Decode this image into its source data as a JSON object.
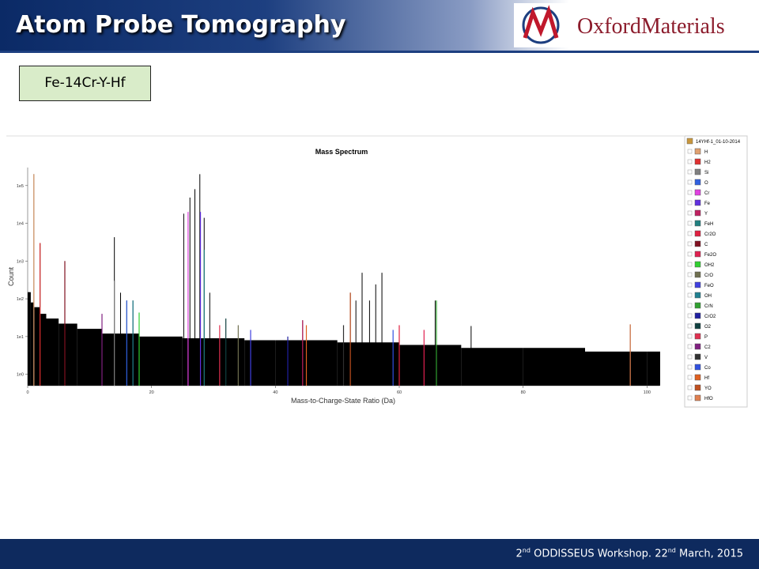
{
  "header": {
    "title": "Atom Probe Tomography",
    "logo": "OxfordMaterials"
  },
  "label": "Fe-14Cr-Y-Hf",
  "footer": {
    "pre": "2",
    "sup1": "nd",
    "mid": " ODDISSEUS Workshop. 22",
    "sup2": "nd",
    "post": " March, 2015"
  },
  "chart_data": {
    "type": "spectrum",
    "title": "Mass Spectrum",
    "x_label": "Mass-to-Charge-State Ratio (Da)",
    "y_label": "Count",
    "log_y": true,
    "xlim": [
      0,
      102
    ],
    "xticks": [
      0,
      20,
      40,
      60,
      80,
      100
    ],
    "ylim": [
      0.5,
      300000
    ],
    "yticks": [
      {
        "value": 1,
        "label": "1e0"
      },
      {
        "value": 10,
        "label": "1e1"
      },
      {
        "value": 100,
        "label": "1e2"
      },
      {
        "value": 1000,
        "label": "1e3"
      },
      {
        "value": 10000,
        "label": "1e4"
      },
      {
        "value": 100000,
        "label": "1e5"
      }
    ],
    "color": "#000000",
    "x": [
      1,
      2,
      6,
      14,
      15,
      16,
      17,
      18,
      25.2,
      26.2,
      27,
      27.8,
      28.5,
      29.4,
      44.4,
      52.1,
      53,
      54,
      55.2,
      56.2,
      57.2,
      65.8,
      71.6,
      97.3
    ],
    "values": [
      200000,
      3000,
      1000,
      4300,
      145,
      90,
      90,
      43,
      18000,
      48000,
      80000,
      200000,
      14000,
      145,
      27,
      145,
      90,
      490,
      90,
      240,
      490,
      90,
      19,
      21
    ],
    "background": {
      "x": [
        0,
        0.5,
        1,
        2,
        3,
        5,
        8,
        12,
        18,
        25,
        30,
        35,
        40,
        50,
        60,
        70,
        80,
        90,
        100,
        102
      ],
      "values": [
        150,
        80,
        60,
        40,
        30,
        22,
        16,
        12,
        10,
        9,
        9,
        8,
        8,
        7,
        6,
        5,
        5,
        4,
        4,
        4
      ]
    },
    "legend_title": "14YHf-1_01-10-2014",
    "series": [
      {
        "name": "H",
        "color": "#e0a070",
        "x": [
          1
        ],
        "values": [
          200000
        ]
      },
      {
        "name": "H2",
        "color": "#e03030",
        "x": [
          2
        ],
        "values": [
          3000
        ]
      },
      {
        "name": "Si",
        "color": "#808080",
        "x": [
          14
        ],
        "values": [
          300
        ]
      },
      {
        "name": "O",
        "color": "#3060e0",
        "x": [
          16
        ],
        "values": [
          90
        ]
      },
      {
        "name": "Cr",
        "color": "#e040e0",
        "x": [
          25.9
        ],
        "values": [
          20000
        ]
      },
      {
        "name": "Fe",
        "color": "#6030e0",
        "x": [
          27.9
        ],
        "values": [
          20000
        ]
      },
      {
        "name": "Y",
        "color": "#c02060",
        "x": [
          44.4
        ],
        "values": [
          27
        ]
      },
      {
        "name": "FeH",
        "color": "#208080",
        "x": [
          28.5
        ],
        "values": [
          2000
        ]
      },
      {
        "name": "Cr2O",
        "color": "#e02040",
        "x": [
          60
        ],
        "values": [
          20
        ]
      },
      {
        "name": "C",
        "color": "#801020",
        "x": [
          6
        ],
        "values": [
          1000
        ]
      },
      {
        "name": "Fe2O",
        "color": "#e02050",
        "x": [
          64
        ],
        "values": [
          15
        ]
      },
      {
        "name": "OH2",
        "color": "#30d030",
        "x": [
          18
        ],
        "values": [
          43
        ]
      },
      {
        "name": "CrO",
        "color": "#707050",
        "x": [
          34
        ],
        "values": [
          20
        ]
      },
      {
        "name": "FeO",
        "color": "#4040e0",
        "x": [
          36
        ],
        "values": [
          15
        ]
      },
      {
        "name": "OH",
        "color": "#208090",
        "x": [
          17
        ],
        "values": [
          90
        ]
      },
      {
        "name": "CrN",
        "color": "#30a030",
        "x": [
          66
        ],
        "values": [
          90
        ]
      },
      {
        "name": "CrO2",
        "color": "#2020a0",
        "x": [
          42
        ],
        "values": [
          10
        ]
      },
      {
        "name": "O2",
        "color": "#104040",
        "x": [
          32
        ],
        "values": [
          30
        ]
      },
      {
        "name": "P",
        "color": "#e03050",
        "x": [
          31
        ],
        "values": [
          20
        ]
      },
      {
        "name": "C2",
        "color": "#802080",
        "x": [
          12
        ],
        "values": [
          40
        ]
      },
      {
        "name": "V",
        "color": "#303030",
        "x": [
          51
        ],
        "values": [
          20
        ]
      },
      {
        "name": "Co",
        "color": "#3050e0",
        "x": [
          59
        ],
        "values": [
          15
        ]
      },
      {
        "name": "Hf",
        "color": "#e06020",
        "x": [
          45
        ],
        "values": [
          20
        ]
      },
      {
        "name": "YO",
        "color": "#c05020",
        "x": [
          52.1
        ],
        "values": [
          145
        ]
      },
      {
        "name": "HfO",
        "color": "#e08050",
        "x": [
          97.3
        ],
        "values": [
          21
        ]
      }
    ]
  }
}
